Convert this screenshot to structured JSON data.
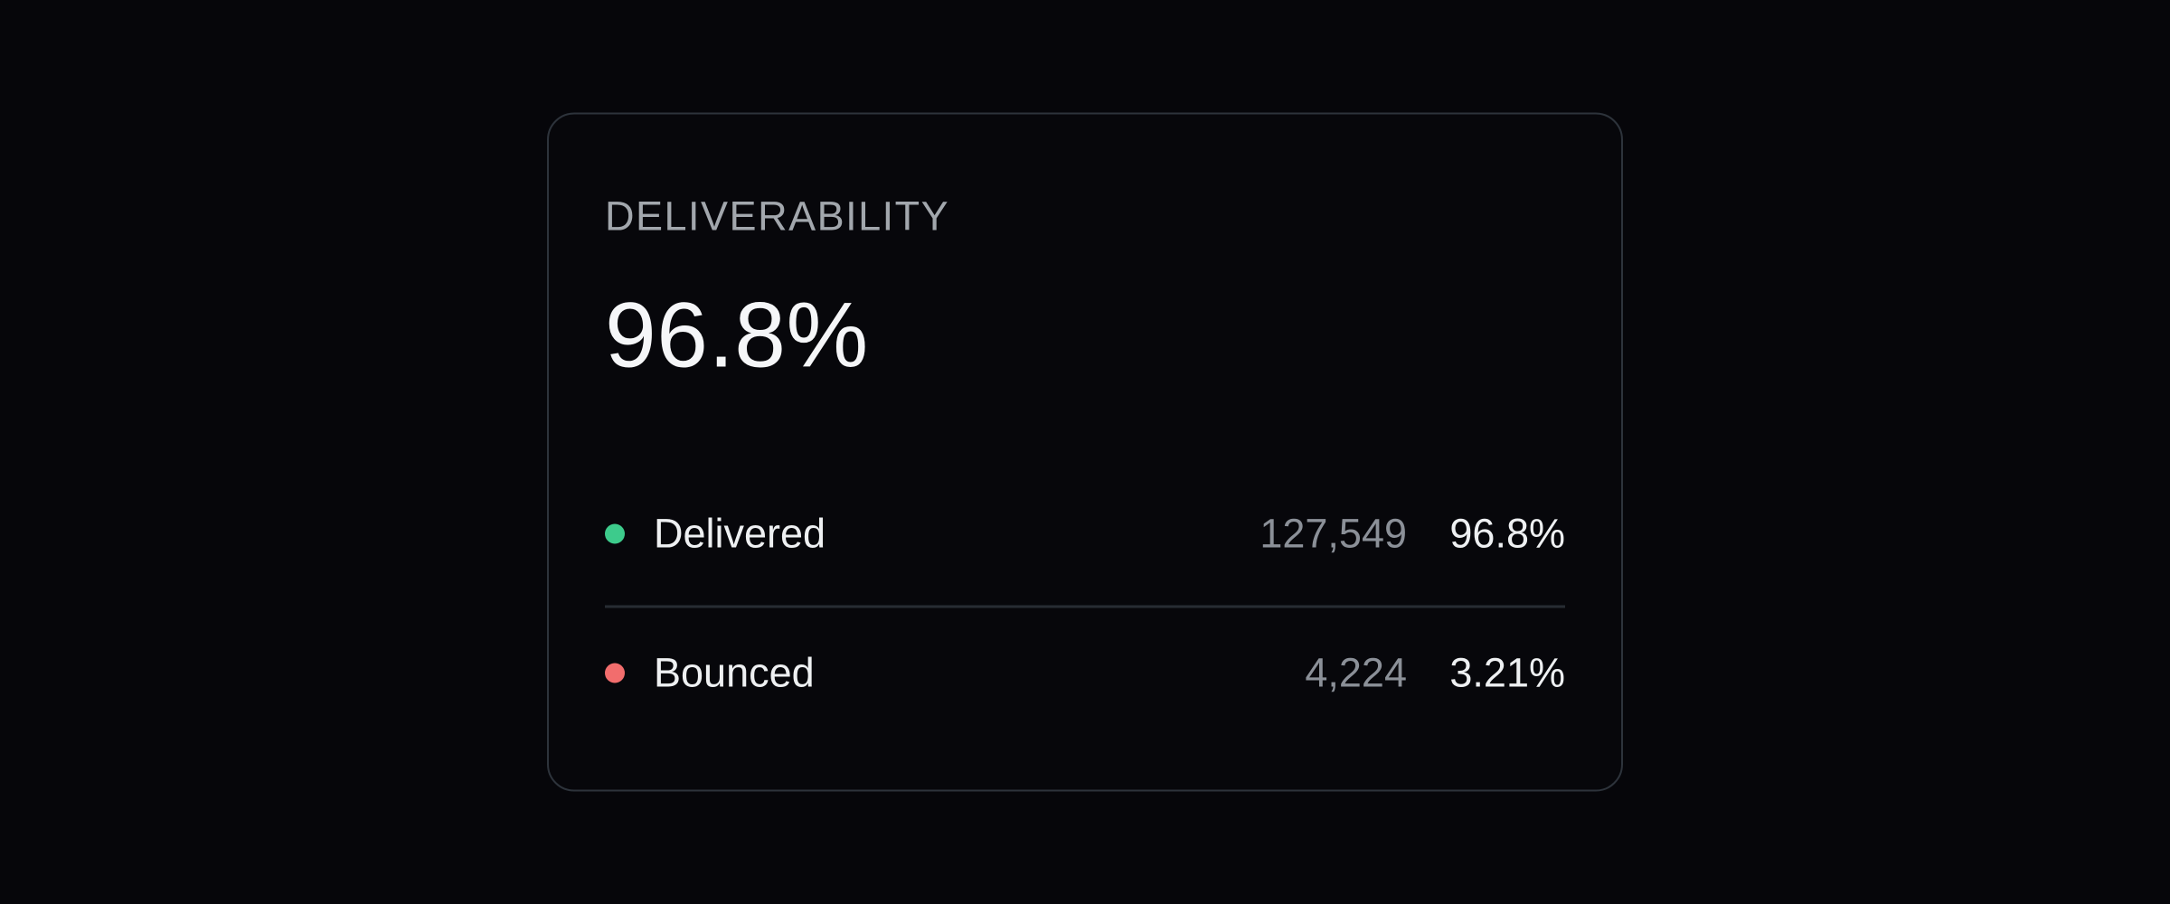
{
  "page": {
    "background_color": "#06060a"
  },
  "card": {
    "title": "DELIVERABILITY",
    "headline_value": "96.8%",
    "border_color": "#2d333b",
    "divider_color": "#272c33",
    "rows": [
      {
        "label": "Delivered",
        "dot_color": "#3dcb8c",
        "count": "127,549",
        "percent": "96.8%"
      },
      {
        "label": "Bounced",
        "dot_color": "#f26d6d",
        "count": "4,224",
        "percent": "3.21%"
      }
    ]
  }
}
